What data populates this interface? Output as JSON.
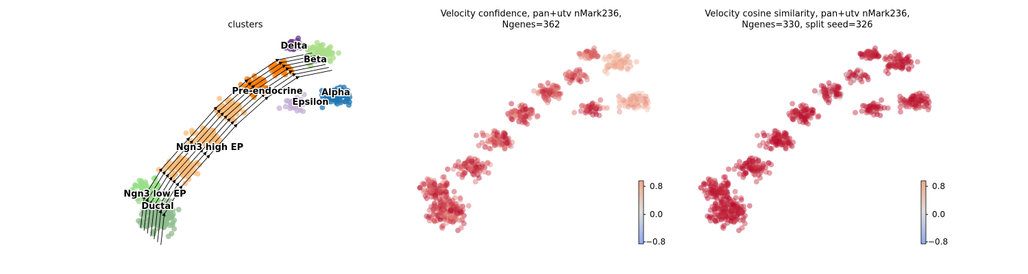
{
  "chart_data": [
    {
      "type": "scatter",
      "title": "clusters",
      "color_by": "cluster",
      "overlay": "velocity-streamlines",
      "legend": "on-data",
      "clusters": [
        {
          "name": "Ductal",
          "color": "#8fbc8f",
          "label": "Ductal"
        },
        {
          "name": "Ngn3 low EP",
          "color": "#98df8a",
          "label": "Ngn3 low EP"
        },
        {
          "name": "Ngn3 high EP",
          "color": "#ffbb78",
          "label": "Ngn3 high EP"
        },
        {
          "name": "Pre-endocrine",
          "color": "#ff7f0e",
          "label": "Pre-endocrine"
        },
        {
          "name": "Delta",
          "color": "#6b3e8e",
          "label": "Delta"
        },
        {
          "name": "Beta",
          "color": "#aadd88",
          "label": "Beta"
        },
        {
          "name": "Alpha",
          "color": "#1f77b4",
          "label": "Alpha"
        },
        {
          "name": "Epsilon",
          "color": "#c5b0d5",
          "label": "Epsilon"
        }
      ]
    },
    {
      "type": "scatter",
      "title_line1": "Velocity confidence, pan+utv nMark236,",
      "title_line2": "Ngenes=362",
      "color_by": "velocity-confidence",
      "colormap": [
        "#3b4cc0",
        "#b8d0f9",
        "#dddddd",
        "#f7b89c",
        "#b40426"
      ],
      "colorbar": {
        "ticks": [
          "0.8",
          "0.0",
          "−0.8"
        ],
        "range": [
          -0.9,
          0.9
        ],
        "placement": "lower-right"
      }
    },
    {
      "type": "scatter",
      "title_line1": "Velocity cosine similarity, pan+utv nMark236,",
      "title_line2": "Ngenes=330, split seed=326",
      "color_by": "velocity-cosine-similarity",
      "colormap": [
        "#3b4cc0",
        "#b8d0f9",
        "#dddddd",
        "#f7b89c",
        "#b40426"
      ],
      "colorbar": {
        "ticks": [
          "0.8",
          "0.0",
          "−0.8"
        ],
        "range": [
          -0.9,
          0.9
        ],
        "placement": "lower-right"
      }
    }
  ]
}
